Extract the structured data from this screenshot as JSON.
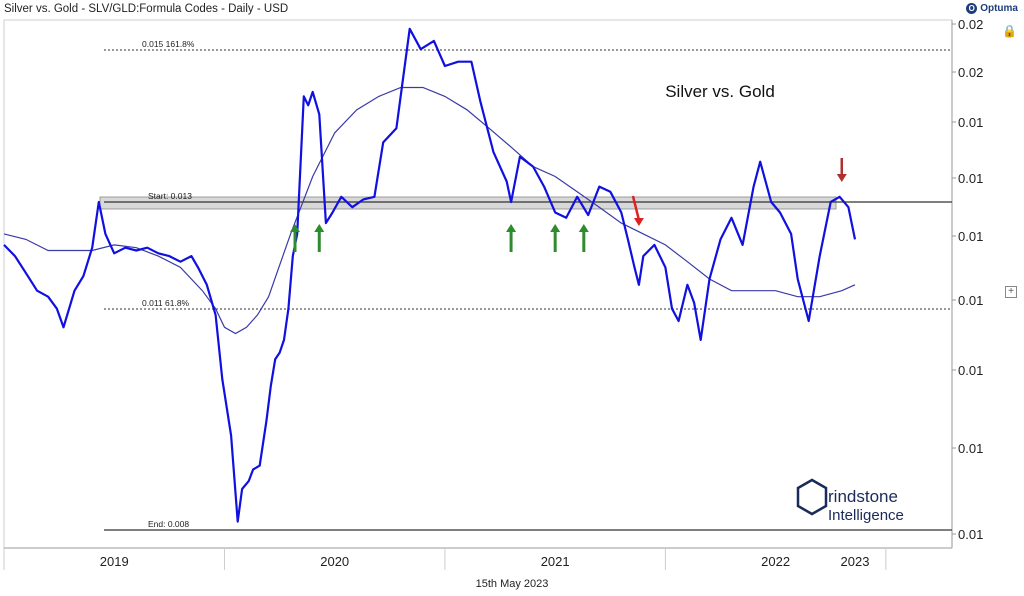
{
  "title": "Silver vs. Gold - SLV/GLD:Formula Codes - Daily - USD",
  "brand": "Optuma",
  "footer_date": "15th May 2023",
  "logo_text": [
    "rindstone",
    "Intelligence"
  ],
  "colors": {
    "price": "#1010e0",
    "ma": "#3a3aa8",
    "zone": "#d8d8d8",
    "up_arrow": "#2e8b2e",
    "down_arrow": "#e02020",
    "down_arrow_dark": "#b03030"
  },
  "icons": {
    "lock": "lock-icon",
    "expand": "plus-icon",
    "brand": "optuma-logo-icon"
  },
  "chart_data": {
    "type": "line",
    "title": "Silver vs. Gold",
    "x_axis_labels": [
      "2019",
      "2020",
      "2021",
      "2022",
      "2023"
    ],
    "y_axis_labels": [
      "0.02",
      "0.02",
      "0.01",
      "0.01",
      "0.01",
      "0.01",
      "0.01",
      "0.01",
      "0.01"
    ],
    "y_scale": "log",
    "levels": [
      {
        "name": "0.015",
        "pct": "161.8%",
        "style": "dotted"
      },
      {
        "name": "Start:",
        "value": "0.013",
        "style": "solid"
      },
      {
        "name": "0.011",
        "pct": "61.8%",
        "style": "dotted"
      },
      {
        "name": "End:",
        "value": "0.008",
        "style": "solid"
      }
    ],
    "series": [
      {
        "type": "price",
        "points": [
          [
            2019.0,
            0.0122
          ],
          [
            2019.05,
            0.012
          ],
          [
            2019.1,
            0.0117
          ],
          [
            2019.15,
            0.0114
          ],
          [
            2019.2,
            0.0113
          ],
          [
            2019.24,
            0.0111
          ],
          [
            2019.27,
            0.0108
          ],
          [
            2019.32,
            0.0114
          ],
          [
            2019.36,
            0.01165
          ],
          [
            2019.4,
            0.01215
          ],
          [
            2019.43,
            0.013
          ],
          [
            2019.46,
            0.0124
          ],
          [
            2019.5,
            0.01205
          ],
          [
            2019.55,
            0.01215
          ],
          [
            2019.6,
            0.0121
          ],
          [
            2019.65,
            0.01215
          ],
          [
            2019.7,
            0.01205
          ],
          [
            2019.75,
            0.012
          ],
          [
            2019.8,
            0.0119
          ],
          [
            2019.85,
            0.012
          ],
          [
            2019.88,
            0.0118
          ],
          [
            2019.92,
            0.0115
          ],
          [
            2019.96,
            0.011
          ],
          [
            2019.99,
            0.01
          ],
          [
            2020.03,
            0.0092
          ],
          [
            2020.06,
            0.0081
          ],
          [
            2020.08,
            0.0085
          ],
          [
            2020.11,
            0.0086
          ],
          [
            2020.13,
            0.00875
          ],
          [
            2020.16,
            0.0088
          ],
          [
            2020.19,
            0.0094
          ],
          [
            2020.21,
            0.0099
          ],
          [
            2020.23,
            0.0103
          ],
          [
            2020.25,
            0.0104
          ],
          [
            2020.27,
            0.0106
          ],
          [
            2020.29,
            0.0111
          ],
          [
            2020.31,
            0.012
          ],
          [
            2020.33,
            0.0124
          ],
          [
            2020.36,
            0.0152
          ],
          [
            2020.38,
            0.015
          ],
          [
            2020.4,
            0.0153
          ],
          [
            2020.43,
            0.0148
          ],
          [
            2020.46,
            0.0126
          ],
          [
            2020.49,
            0.0128
          ],
          [
            2020.53,
            0.0131
          ],
          [
            2020.58,
            0.0129
          ],
          [
            2020.63,
            0.01305
          ],
          [
            2020.68,
            0.0131
          ],
          [
            2020.72,
            0.0142
          ],
          [
            2020.78,
            0.0145
          ],
          [
            2020.84,
            0.0168
          ],
          [
            2020.89,
            0.0163
          ],
          [
            2020.95,
            0.0165
          ],
          [
            2021.0,
            0.0159
          ],
          [
            2021.06,
            0.016
          ],
          [
            2021.12,
            0.016
          ],
          [
            2021.16,
            0.0151
          ],
          [
            2021.22,
            0.014
          ],
          [
            2021.28,
            0.0134
          ],
          [
            2021.3,
            0.013
          ],
          [
            2021.34,
            0.0139
          ],
          [
            2021.4,
            0.0137
          ],
          [
            2021.45,
            0.0133
          ],
          [
            2021.5,
            0.0128
          ],
          [
            2021.55,
            0.0127
          ],
          [
            2021.6,
            0.0131
          ],
          [
            2021.65,
            0.01275
          ],
          [
            2021.7,
            0.0133
          ],
          [
            2021.75,
            0.0132
          ],
          [
            2021.8,
            0.0128
          ],
          [
            2021.83,
            0.0123
          ],
          [
            2021.86,
            0.0118
          ],
          [
            2021.88,
            0.0115
          ],
          [
            2021.9,
            0.012
          ],
          [
            2021.95,
            0.0122
          ],
          [
            2022.0,
            0.0118
          ],
          [
            2022.03,
            0.0111
          ],
          [
            2022.06,
            0.0109
          ],
          [
            2022.1,
            0.0115
          ],
          [
            2022.13,
            0.0112
          ],
          [
            2022.16,
            0.0106
          ],
          [
            2022.2,
            0.0116
          ],
          [
            2022.25,
            0.0123
          ],
          [
            2022.3,
            0.0127
          ],
          [
            2022.35,
            0.0122
          ],
          [
            2022.4,
            0.0133
          ],
          [
            2022.43,
            0.0138
          ],
          [
            2022.48,
            0.013
          ],
          [
            2022.52,
            0.0128
          ],
          [
            2022.57,
            0.0124
          ],
          [
            2022.6,
            0.0116
          ],
          [
            2022.65,
            0.0109
          ],
          [
            2022.7,
            0.012
          ],
          [
            2022.75,
            0.013
          ],
          [
            2022.79,
            0.0131
          ],
          [
            2022.83,
            0.0129
          ],
          [
            2022.86,
            0.0123
          ]
        ]
      },
      {
        "type": "moving_average",
        "points": [
          [
            2019.0,
            0.0124
          ],
          [
            2019.1,
            0.0123
          ],
          [
            2019.2,
            0.0121
          ],
          [
            2019.3,
            0.0121
          ],
          [
            2019.4,
            0.0121
          ],
          [
            2019.5,
            0.0122
          ],
          [
            2019.6,
            0.01215
          ],
          [
            2019.7,
            0.012
          ],
          [
            2019.8,
            0.0118
          ],
          [
            2019.9,
            0.0114
          ],
          [
            2019.96,
            0.0111
          ],
          [
            2020.0,
            0.0108
          ],
          [
            2020.05,
            0.0107
          ],
          [
            2020.1,
            0.0108
          ],
          [
            2020.15,
            0.011
          ],
          [
            2020.2,
            0.0113
          ],
          [
            2020.3,
            0.0124
          ],
          [
            2020.4,
            0.0135
          ],
          [
            2020.5,
            0.0144
          ],
          [
            2020.6,
            0.0149
          ],
          [
            2020.7,
            0.0152
          ],
          [
            2020.8,
            0.0154
          ],
          [
            2020.9,
            0.0154
          ],
          [
            2021.0,
            0.0152
          ],
          [
            2021.1,
            0.0149
          ],
          [
            2021.2,
            0.0145
          ],
          [
            2021.3,
            0.0141
          ],
          [
            2021.4,
            0.0137
          ],
          [
            2021.5,
            0.0135
          ],
          [
            2021.6,
            0.0132
          ],
          [
            2021.7,
            0.0129
          ],
          [
            2021.8,
            0.0126
          ],
          [
            2021.9,
            0.0124
          ],
          [
            2022.0,
            0.0122
          ],
          [
            2022.1,
            0.0119
          ],
          [
            2022.2,
            0.0116
          ],
          [
            2022.3,
            0.0114
          ],
          [
            2022.4,
            0.0114
          ],
          [
            2022.5,
            0.0114
          ],
          [
            2022.6,
            0.0113
          ],
          [
            2022.7,
            0.0113
          ],
          [
            2022.8,
            0.0114
          ],
          [
            2022.86,
            0.0115
          ]
        ]
      }
    ],
    "annotations": [
      {
        "type": "up_arrow",
        "x": 2020.32,
        "count": 1
      },
      {
        "type": "up_arrow",
        "x": 2020.43
      },
      {
        "type": "up_arrow",
        "x": 2021.3
      },
      {
        "type": "up_arrow",
        "x": 2021.5
      },
      {
        "type": "up_arrow",
        "x": 2021.63
      },
      {
        "type": "down_arrow",
        "x": 2021.88
      },
      {
        "type": "down_arrow",
        "x": 2022.8
      }
    ]
  }
}
